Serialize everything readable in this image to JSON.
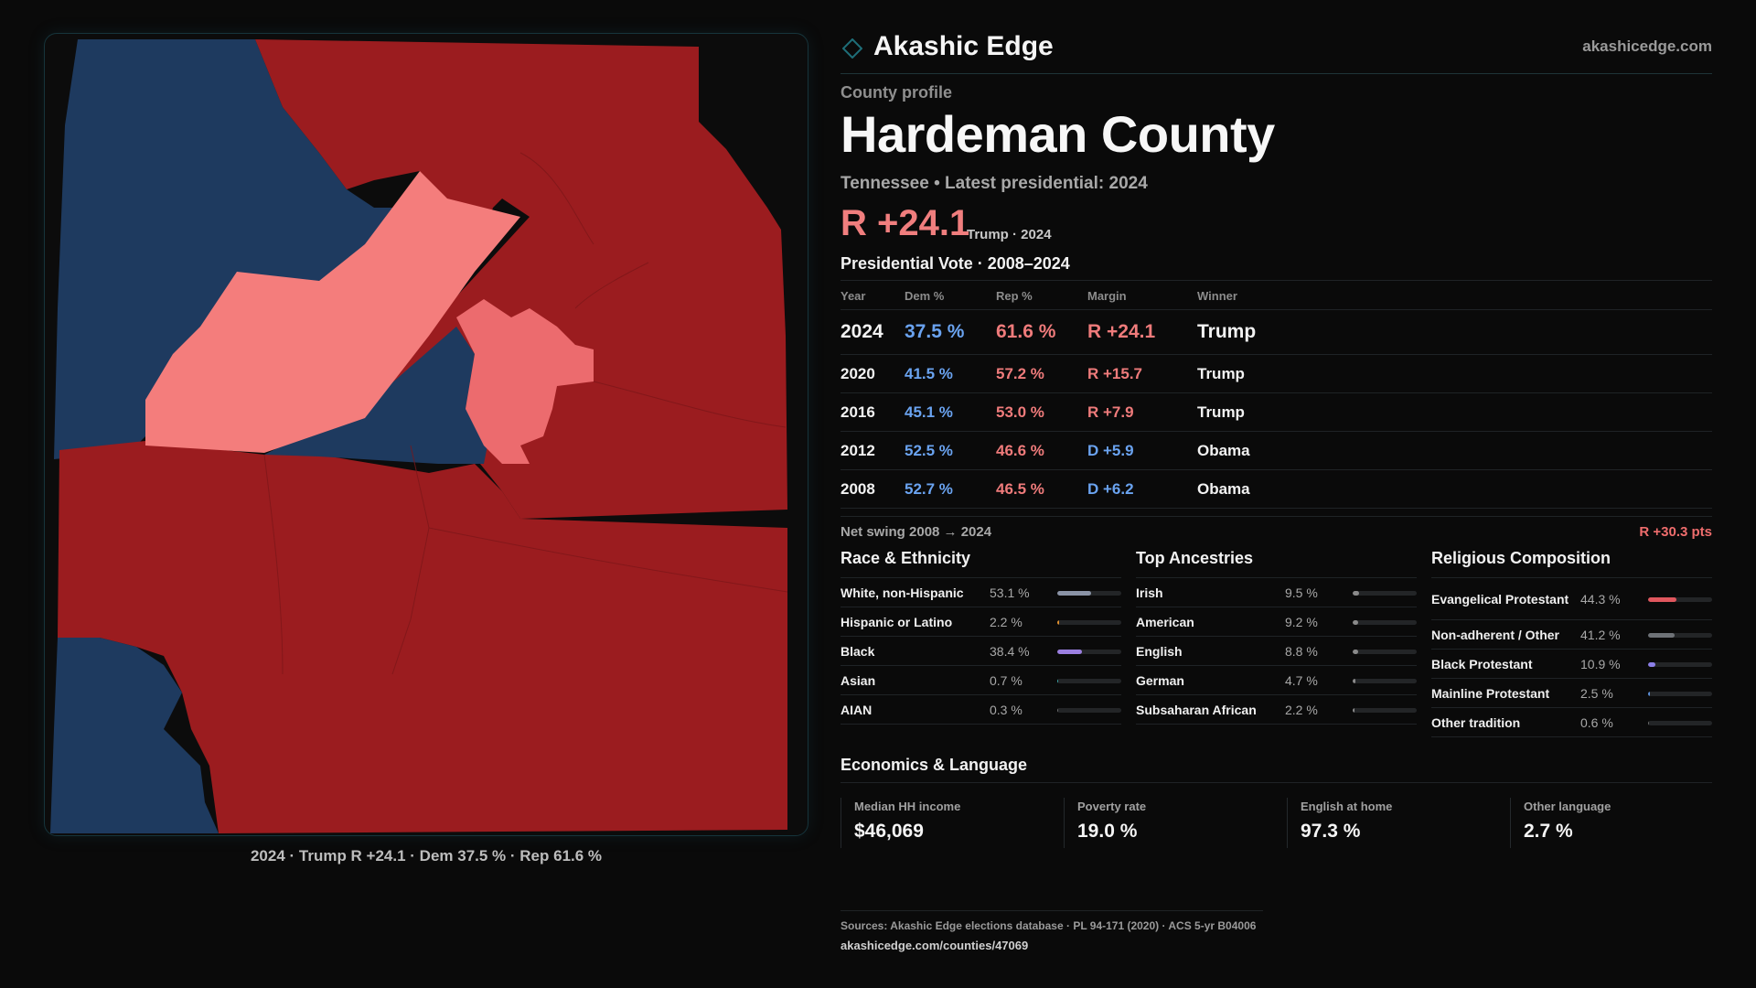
{
  "brand": {
    "name": "Akashic Edge",
    "url": "akashicedge.com"
  },
  "profile": {
    "eyebrow": "County profile",
    "title": "Hardeman County",
    "subtitle": "Tennessee • Latest presidential: 2024",
    "margin": "R +24.1",
    "margin_note": "Trump · 2024"
  },
  "map": {
    "caption": "2024 · Trump R +24.1 · Dem 37.5 % · Rep 61.6 %"
  },
  "colors": {
    "dem": "#6aa3f0",
    "rep": "#ef7b7b",
    "map_dem": "#1e3a5f",
    "map_rep": "#9b1c1f",
    "map_rep_light": "#f47d7c",
    "accent": "#1e6e78"
  },
  "votes": {
    "title": "Presidential Vote · 2008–2024",
    "headers": {
      "year": "Year",
      "dem": "Dem %",
      "rep": "Rep %",
      "margin": "Margin",
      "winner": "Winner"
    },
    "rows": [
      {
        "year": "2024",
        "dem": "37.5 %",
        "rep": "61.6 %",
        "margin": "R +24.1",
        "winner": "Trump",
        "party": "R"
      },
      {
        "year": "2020",
        "dem": "41.5 %",
        "rep": "57.2 %",
        "margin": "R +15.7",
        "winner": "Trump",
        "party": "R"
      },
      {
        "year": "2016",
        "dem": "45.1 %",
        "rep": "53.0 %",
        "margin": "R +7.9",
        "winner": "Trump",
        "party": "R"
      },
      {
        "year": "2012",
        "dem": "52.5 %",
        "rep": "46.6 %",
        "margin": "D +5.9",
        "winner": "Obama",
        "party": "D"
      },
      {
        "year": "2008",
        "dem": "52.7 %",
        "rep": "46.5 %",
        "margin": "D +6.2",
        "winner": "Obama",
        "party": "D"
      }
    ],
    "swing_label": "Net swing 2008 → 2024",
    "swing_value": "R +30.3 pts"
  },
  "race": {
    "title": "Race & Ethnicity",
    "rows": [
      {
        "label": "White, non-Hispanic",
        "value": "53.1 %",
        "pct": 53.1,
        "color": "#8a93a6"
      },
      {
        "label": "Hispanic or Latino",
        "value": "2.2 %",
        "pct": 2.2,
        "color": "#e0902e"
      },
      {
        "label": "Black",
        "value": "38.4 %",
        "pct": 38.4,
        "color": "#9b7fe0"
      },
      {
        "label": "Asian",
        "value": "0.7 %",
        "pct": 0.7,
        "color": "#3aa6a6"
      },
      {
        "label": "AIAN",
        "value": "0.3 %",
        "pct": 0.3,
        "color": "#6b6b6b"
      }
    ]
  },
  "ancestry": {
    "title": "Top Ancestries",
    "rows": [
      {
        "label": "Irish",
        "value": "9.5 %",
        "pct": 9.5,
        "color": "#8a8a8a"
      },
      {
        "label": "American",
        "value": "9.2 %",
        "pct": 9.2,
        "color": "#8a8a8a"
      },
      {
        "label": "English",
        "value": "8.8 %",
        "pct": 8.8,
        "color": "#8a8a8a"
      },
      {
        "label": "German",
        "value": "4.7 %",
        "pct": 4.7,
        "color": "#8a8a8a"
      },
      {
        "label": "Subsaharan African",
        "value": "2.2 %",
        "pct": 2.2,
        "color": "#8a8a8a"
      }
    ]
  },
  "religion": {
    "title": "Religious Composition",
    "rows": [
      {
        "label": "Evangelical Protestant",
        "value": "44.3 %",
        "pct": 44.3,
        "color": "#e0575e"
      },
      {
        "label": "Non-adherent / Other",
        "value": "41.2 %",
        "pct": 41.2,
        "color": "#6e7277"
      },
      {
        "label": "Black Protestant",
        "value": "10.9 %",
        "pct": 10.9,
        "color": "#8c7fe8"
      },
      {
        "label": "Mainline Protestant",
        "value": "2.5 %",
        "pct": 2.5,
        "color": "#5b8fd8"
      },
      {
        "label": "Other tradition",
        "value": "0.6 %",
        "pct": 0.6,
        "color": "#6b6b6b"
      }
    ]
  },
  "economics": {
    "title": "Economics & Language",
    "items": [
      {
        "label": "Median HH income",
        "value": "$46,069"
      },
      {
        "label": "Poverty rate",
        "value": "19.0 %"
      },
      {
        "label": "English at home",
        "value": "97.3 %"
      },
      {
        "label": "Other language",
        "value": "2.7 %"
      }
    ]
  },
  "footer": {
    "sources": "Sources: Akashic Edge elections database · PL 94-171 (2020) · ACS 5-yr B04006",
    "url": "akashicedge.com/counties/47069"
  }
}
